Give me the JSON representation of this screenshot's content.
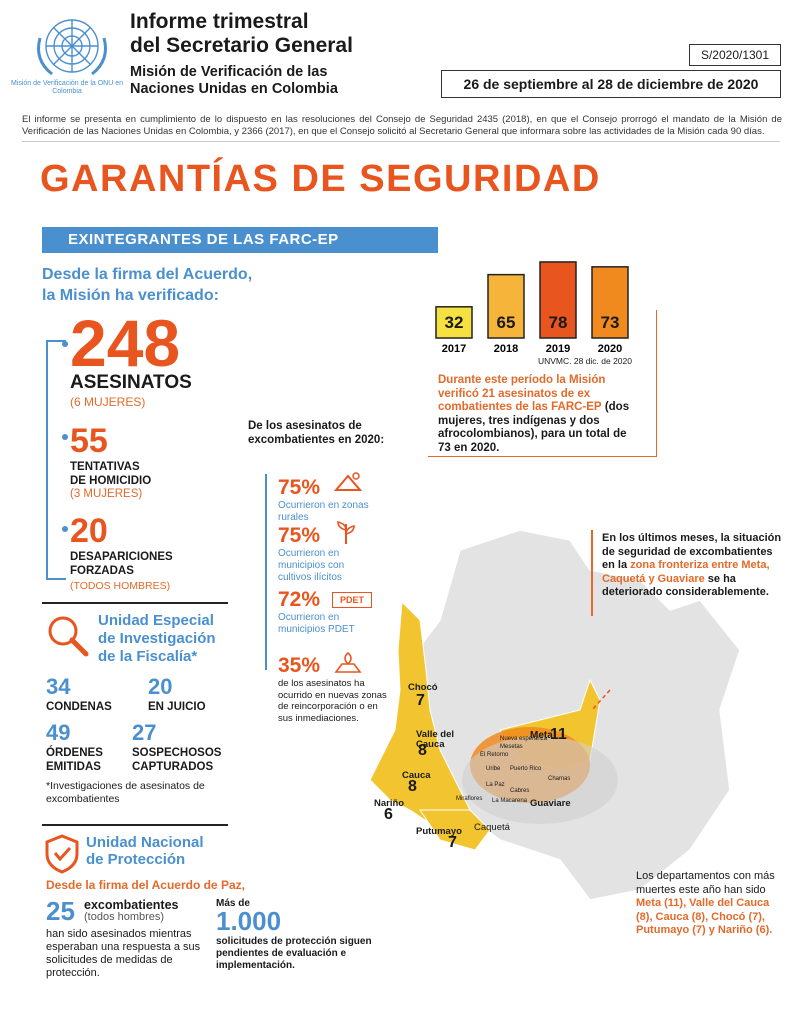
{
  "header": {
    "logo_caption": "Misión de Verificación de la ONU en Colombia",
    "title_line1": "Informe trimestral",
    "title_line2": "del Secretario General",
    "subtitle_line1": "Misión de Verificación de las",
    "subtitle_line2": "Naciones Unidas en Colombia",
    "doc_ref": "S/2020/1301",
    "date_range": "26 de septiembre al 28 de diciembre de 2020",
    "intro": "El informe se presenta en cumplimiento de lo dispuesto en las resoluciones del Consejo de Seguridad 2435 (2018), en que el Consejo prorrogó el mandato de la Misión de Verificación de las Naciones Unidas en Colombia, y 2366 (2017), en que el Consejo solicitó al Secretario General que informara sobre las actividades de la Misión cada 90 días."
  },
  "main_heading": "GARANTÍAS DE SEGURIDAD",
  "banner": "EXINTEGRANTES DE LAS FARC-EP",
  "since": {
    "line1": "Desde la firma del Acuerdo,",
    "line2": "la Misión ha verificado:"
  },
  "stats": {
    "asesinatos": {
      "num": "248",
      "label": "ASESINATOS",
      "sub": "(6 MUJERES)"
    },
    "tentativas": {
      "num": "55",
      "label1": "TENTATIVAS",
      "label2": "DE HOMICIDIO",
      "sub": "(3 MUJERES)"
    },
    "desapariciones": {
      "num": "20",
      "label1": "DESAPARICIONES",
      "label2": "FORZADAS",
      "sub": "(TODOS HOMBRES)"
    }
  },
  "fiscalia": {
    "title1": "Unidad Especial",
    "title2": "de Investigación",
    "title3": "de la Fiscalía*",
    "items": [
      {
        "num": "34",
        "label1": "CONDENAS",
        "label2": ""
      },
      {
        "num": "20",
        "label1": "EN JUICIO",
        "label2": ""
      },
      {
        "num": "49",
        "label1": "ÓRDENES",
        "label2": "EMITIDAS"
      },
      {
        "num": "27",
        "label1": "SOSPECHOSOS",
        "label2": "CAPTURADOS"
      }
    ],
    "footnote": "*Investigaciones de asesinatos de excombatientes"
  },
  "unp": {
    "title1": "Unidad Nacional",
    "title2": "de Protección",
    "since": "Desde la firma del Acuerdo de Paz,",
    "num25": "25",
    "label25": "excombatientes",
    "sub25": "(todos hombres)",
    "text25": "han sido asesinados mientras esperaban una respuesta a sus solicitudes de medidas de protección.",
    "mas": "Más de",
    "num1000": "1.000",
    "text1000": "solicitudes de protección siguen pendientes de evaluación e implementación."
  },
  "chart_data": {
    "type": "bar",
    "categories": [
      "2017",
      "2018",
      "2019",
      "2020"
    ],
    "values": [
      32,
      65,
      78,
      73
    ],
    "colors": [
      "#f5e142",
      "#f6b43a",
      "#e8551f",
      "#f08a1e"
    ],
    "source": "UNVMC. 28 dic. de 2020"
  },
  "durante": {
    "bold": "Durante este período la Misión verificó 21 asesinatos de ex combatientes de las FARC-EP",
    "rest": "(dos mujeres, tres indígenas y dos afrocolombianos), para un total de 73 en 2020."
  },
  "asesinatos2020": {
    "heading": "De los asesinatos de excombatientes en 2020:",
    "items": [
      {
        "pct": "75%",
        "text": "Ocurrieron en zonas rurales",
        "icon": "farm-icon"
      },
      {
        "pct": "75%",
        "text": "Ocurrieron en municipios con cultivos ilícitos",
        "icon": "plant-icon"
      },
      {
        "pct": "72%",
        "text": "Ocurrieron en municipios PDET",
        "icon": "pdet-icon"
      },
      {
        "pct": "35%",
        "text": "de los asesinatos ha ocurrido en nuevas zonas de reincorporación o en sus inmediaciones.",
        "icon": "map-pin-icon"
      }
    ],
    "pdet_label": "PDET"
  },
  "ultimos": {
    "part1": "En los últimos meses, la situación de seguridad de excombatientes en la",
    "part2": "zona fronteriza entre Meta, Caquetá y Guaviare",
    "part3": "se ha deteriorado considerablemente."
  },
  "map": {
    "departments": [
      {
        "name": "Chocó",
        "value": "7"
      },
      {
        "name": "Valle del Cauca",
        "value": "8"
      },
      {
        "name": "Cauca",
        "value": "8"
      },
      {
        "name": "Nariño",
        "value": "6"
      },
      {
        "name": "Putumayo",
        "value": "7"
      },
      {
        "name": "Meta",
        "value": "11"
      }
    ],
    "other_labels": [
      "Caquetá",
      "Guaviare"
    ],
    "small_labels": [
      "Mesetas",
      "Uribe",
      "Puerto Rico",
      "Cabres",
      "Chamas",
      "El Retorno",
      "Miraflores",
      "La Macarena",
      "Nueva esperanza",
      "La Paz"
    ]
  },
  "deptos": {
    "intro": "Los departamentos con más muertes este año han sido",
    "list": "Meta (11), Valle del Cauca (8), Cauca (8), Chocó (7), Putumayo (7) y Nariño (6)."
  }
}
